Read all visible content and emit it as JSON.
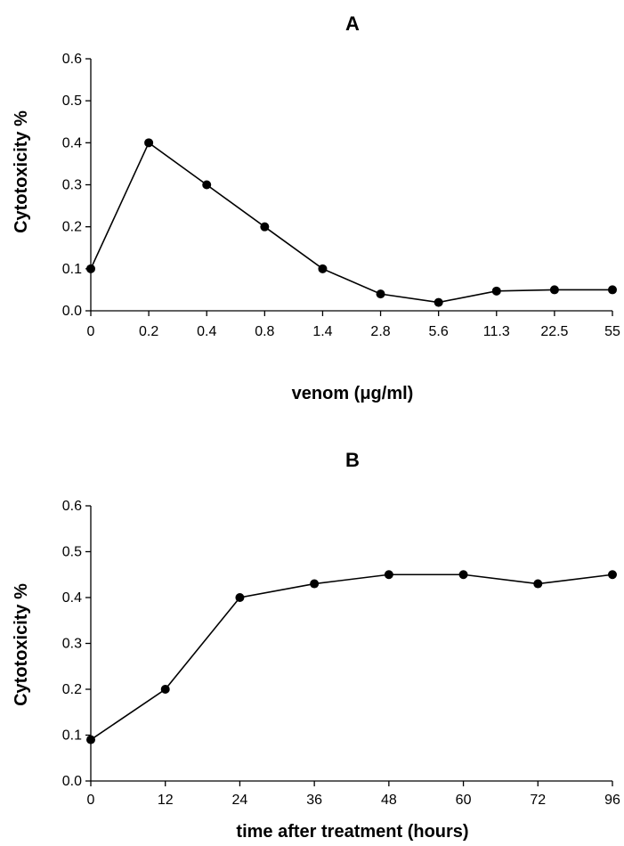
{
  "chart_data": [
    {
      "type": "line",
      "title": "A",
      "xlabel": "venom (μg/ml)",
      "ylabel": "Cytotoxicity %",
      "categories": [
        "0",
        "0.2",
        "0.4",
        "0.8",
        "1.4",
        "2.8",
        "5.6",
        "11.3",
        "22.5",
        "55"
      ],
      "values": [
        0.1,
        0.4,
        0.3,
        0.2,
        0.1,
        0.04,
        0.02,
        0.047,
        0.05,
        0.05
      ],
      "ylim": [
        0,
        0.6
      ],
      "yticks": [
        "0.0",
        "0.1",
        "0.2",
        "0.3",
        "0.4",
        "0.5",
        "0.6"
      ],
      "grid": false
    },
    {
      "type": "line",
      "title": "B",
      "xlabel": "time after treatment (hours)",
      "ylabel": "Cytotoxicity %",
      "categories": [
        "0",
        "12",
        "24",
        "36",
        "48",
        "60",
        "72",
        "96"
      ],
      "values": [
        0.09,
        0.2,
        0.4,
        0.43,
        0.45,
        0.45,
        0.43,
        0.45
      ],
      "ylim": [
        0,
        0.6
      ],
      "yticks": [
        "0.0",
        "0.1",
        "0.2",
        "0.3",
        "0.4",
        "0.5",
        "0.6"
      ],
      "grid": false
    }
  ]
}
